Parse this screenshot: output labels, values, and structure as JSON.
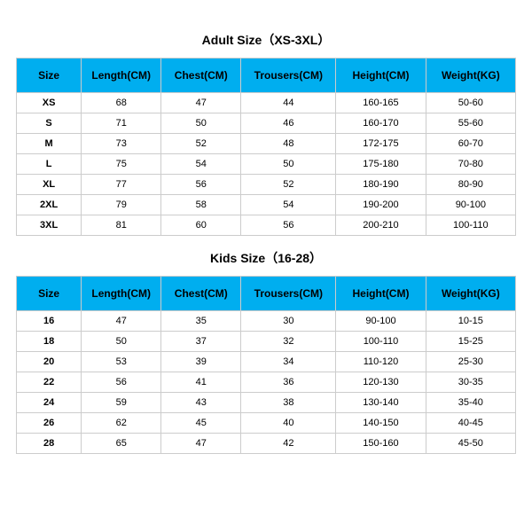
{
  "adult": {
    "title": "Adult Size（XS-3XL）",
    "columns": [
      "Size",
      "Length(CM)",
      "Chest(CM)",
      "Trousers(CM)",
      "Height(CM)",
      "Weight(KG)"
    ],
    "rows": [
      [
        "XS",
        "68",
        "47",
        "44",
        "160-165",
        "50-60"
      ],
      [
        "S",
        "71",
        "50",
        "46",
        "160-170",
        "55-60"
      ],
      [
        "M",
        "73",
        "52",
        "48",
        "172-175",
        "60-70"
      ],
      [
        "L",
        "75",
        "54",
        "50",
        "175-180",
        "70-80"
      ],
      [
        "XL",
        "77",
        "56",
        "52",
        "180-190",
        "80-90"
      ],
      [
        "2XL",
        "79",
        "58",
        "54",
        "190-200",
        "90-100"
      ],
      [
        "3XL",
        "81",
        "60",
        "56",
        "200-210",
        "100-110"
      ]
    ]
  },
  "kids": {
    "title": "Kids Size（16-28）",
    "columns": [
      "Size",
      "Length(CM)",
      "Chest(CM)",
      "Trousers(CM)",
      "Height(CM)",
      "Weight(KG)"
    ],
    "rows": [
      [
        "16",
        "47",
        "35",
        "30",
        "90-100",
        "10-15"
      ],
      [
        "18",
        "50",
        "37",
        "32",
        "100-110",
        "15-25"
      ],
      [
        "20",
        "53",
        "39",
        "34",
        "110-120",
        "25-30"
      ],
      [
        "22",
        "56",
        "41",
        "36",
        "120-130",
        "30-35"
      ],
      [
        "24",
        "59",
        "43",
        "38",
        "130-140",
        "35-40"
      ],
      [
        "26",
        "62",
        "45",
        "40",
        "140-150",
        "40-45"
      ],
      [
        "28",
        "65",
        "47",
        "42",
        "150-160",
        "45-50"
      ]
    ]
  },
  "style": {
    "header_bg": "#00aeef",
    "border_color": "#cccccc",
    "col_widths": [
      "13%",
      "16%",
      "16%",
      "19%",
      "18%",
      "18%"
    ]
  }
}
